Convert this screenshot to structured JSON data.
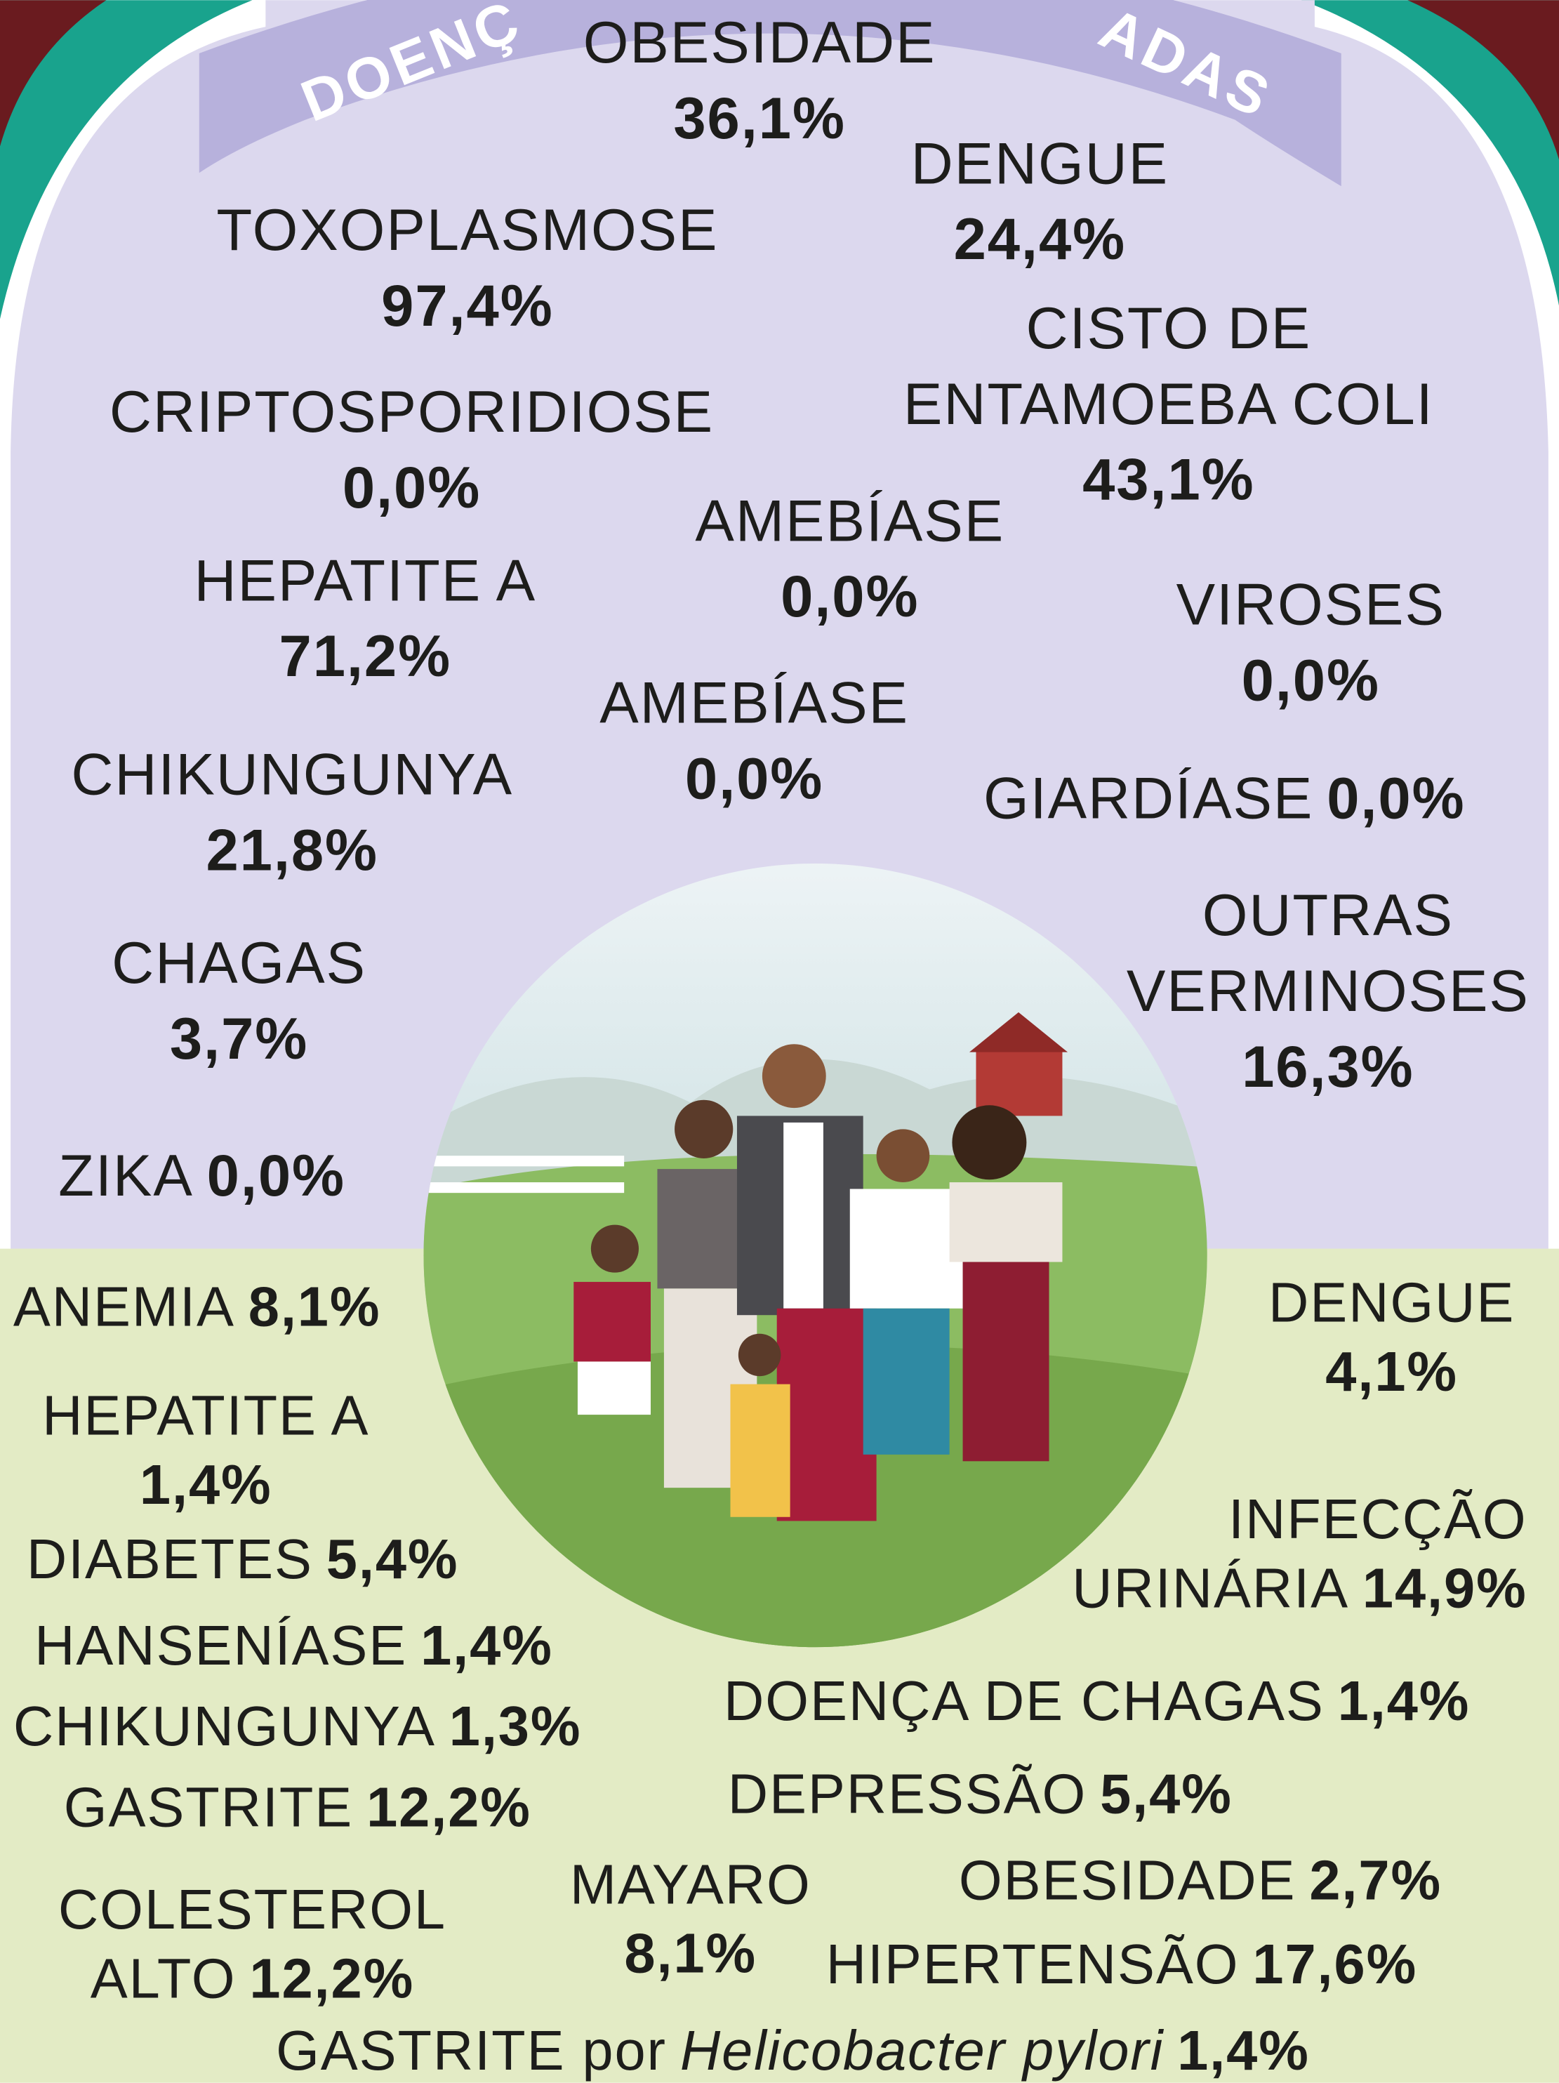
{
  "banner": {
    "left": "DOENÇ",
    "right": "ADAS"
  },
  "top": {
    "items": [
      {
        "name": "OBESIDADE",
        "value": "36,1%"
      },
      {
        "name": "DENGUE",
        "value": "24,4%"
      },
      {
        "name": "TOXOPLASMOSE",
        "value": "97,4%"
      },
      {
        "name": [
          "CISTO DE",
          "ENTAMOEBA COLI"
        ],
        "value": "43,1%"
      },
      {
        "name": "CRIPTOSPORIDIOSE",
        "value": "0,0%"
      },
      {
        "name": "AMEBÍASE",
        "value": "0,0%"
      },
      {
        "name": "HEPATITE A",
        "value": "71,2%"
      },
      {
        "name": "VIROSES",
        "value": "0,0%"
      },
      {
        "name": "AMEBÍASE",
        "value": "0,0%"
      },
      {
        "name": "CHIKUNGUNYA",
        "value": "21,8%"
      },
      {
        "name": "GIARDÍASE",
        "value": "0,0%"
      },
      {
        "name": [
          "OUTRAS",
          "VERMINOSES"
        ],
        "value": "16,3%"
      },
      {
        "name": "CHAGAS",
        "value": "3,7%"
      },
      {
        "name": "ZIKA",
        "value": "0,0%"
      }
    ]
  },
  "bottom": {
    "items": [
      {
        "name": "ANEMIA",
        "value": "8,1%"
      },
      {
        "name": "DENGUE",
        "value": "4,1%"
      },
      {
        "name": "HEPATITE A",
        "value": "1,4%"
      },
      {
        "name": [
          "INFECÇÃO",
          "URINÁRIA"
        ],
        "value": "14,9%"
      },
      {
        "name": "DIABETES",
        "value": "5,4%"
      },
      {
        "name": "HANSENÍASE",
        "value": "1,4%"
      },
      {
        "name": "DOENÇA DE CHAGAS",
        "value": "1,4%"
      },
      {
        "name": "CHIKUNGUNYA",
        "value": "1,3%"
      },
      {
        "name": "GASTRITE",
        "value": "12,2%"
      },
      {
        "name": "DEPRESSÃO",
        "value": "5,4%"
      },
      {
        "name": [
          "COLESTEROL",
          "ALTO"
        ],
        "value": "12,2%"
      },
      {
        "name": "MAYARO",
        "value": "8,1%"
      },
      {
        "name": "OBESIDADE",
        "value": "2,7%"
      },
      {
        "name": "HIPERTENSÃO",
        "value": "17,6%"
      },
      {
        "name": "GASTRITE por",
        "species": "Helicobacter pylori",
        "value": "1,4%"
      }
    ]
  }
}
